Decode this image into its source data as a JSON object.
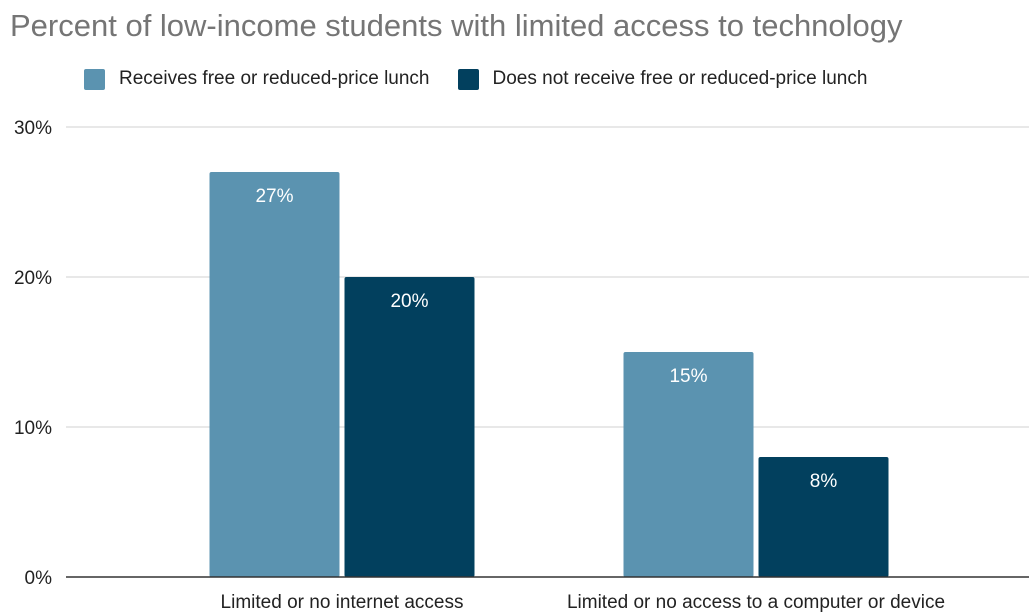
{
  "chart_data": {
    "type": "bar",
    "title": "Percent of low-income students with limited access to technology",
    "categories": [
      "Limited or no internet access",
      "Limited or no access to a computer or device"
    ],
    "series": [
      {
        "name": "Receives free or reduced-price lunch",
        "values": [
          27,
          15
        ],
        "labels": [
          "27%",
          "15%"
        ],
        "color": "#5b93b0"
      },
      {
        "name": "Does not receive free or reduced-price lunch",
        "values": [
          20,
          8
        ],
        "labels": [
          "20%",
          "8%"
        ],
        "color": "#02405e"
      }
    ],
    "ylim": [
      0,
      30
    ],
    "yticks": [
      0,
      10,
      20,
      30
    ],
    "ytick_labels": [
      "0%",
      "10%",
      "20%",
      "30%"
    ],
    "xlabel": "",
    "ylabel": "",
    "grid": true,
    "legend_position": "top-left"
  }
}
